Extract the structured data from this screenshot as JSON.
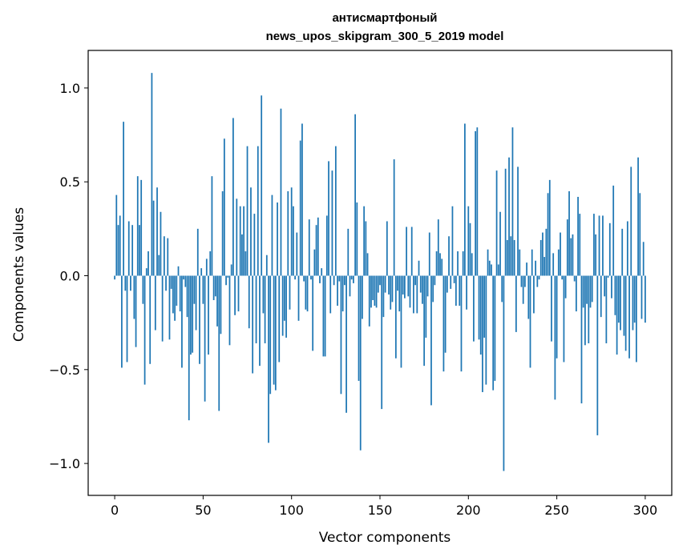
{
  "chart_data": {
    "type": "bar",
    "title_line1": "антисмартфоный",
    "title_line2": "news_upos_skipgram_300_5_2019 model",
    "xlabel": "Vector components",
    "ylabel": "Components values",
    "xlim": [
      -15,
      315
    ],
    "ylim": [
      -1.17,
      1.2
    ],
    "x_ticks": [
      0,
      50,
      100,
      150,
      200,
      250,
      300
    ],
    "x_tick_labels": [
      "0",
      "50",
      "100",
      "150",
      "200",
      "250",
      "300"
    ],
    "y_ticks": [
      -1.0,
      -0.5,
      0.0,
      0.5,
      1.0
    ],
    "y_tick_labels": [
      "−1.0",
      "−0.5",
      "0.0",
      "0.5",
      "1.0"
    ],
    "bar_color": "#1f77b4",
    "bar_width": 0.8,
    "values": [
      -0.02,
      0.43,
      0.27,
      0.32,
      -0.49,
      0.82,
      -0.08,
      -0.46,
      0.29,
      -0.08,
      0.27,
      -0.23,
      -0.38,
      0.53,
      0.27,
      0.51,
      -0.15,
      -0.58,
      0.04,
      0.13,
      -0.47,
      1.08,
      0.4,
      -0.29,
      0.47,
      0.11,
      0.34,
      -0.35,
      0.21,
      -0.08,
      0.2,
      -0.34,
      -0.07,
      -0.2,
      -0.24,
      -0.16,
      0.05,
      -0.19,
      -0.49,
      -0.02,
      -0.06,
      -0.22,
      -0.77,
      -0.42,
      -0.41,
      -0.15,
      -0.29,
      0.25,
      -0.47,
      0.04,
      -0.15,
      -0.67,
      0.09,
      -0.42,
      0.13,
      0.53,
      -0.13,
      -0.11,
      -0.27,
      -0.72,
      -0.31,
      0.45,
      0.73,
      -0.05,
      -0.01,
      -0.37,
      0.06,
      0.84,
      -0.21,
      0.41,
      -0.19,
      0.37,
      0.22,
      0.37,
      0.13,
      0.69,
      -0.28,
      0.47,
      -0.52,
      0.33,
      -0.36,
      0.69,
      -0.48,
      0.96,
      -0.2,
      -0.36,
      0.11,
      -0.89,
      -0.63,
      0.43,
      -0.58,
      -0.61,
      0.39,
      -0.46,
      0.89,
      -0.32,
      -0.24,
      -0.33,
      0.45,
      -0.18,
      0.47,
      0.37,
      -0.02,
      0.23,
      -0.24,
      0.72,
      0.81,
      -0.03,
      -0.18,
      -0.19,
      0.3,
      -0.02,
      -0.4,
      0.14,
      0.27,
      0.31,
      -0.04,
      0.04,
      -0.43,
      -0.43,
      0.32,
      0.61,
      -0.2,
      0.56,
      -0.05,
      0.69,
      -0.16,
      -0.03,
      -0.63,
      -0.19,
      -0.05,
      -0.73,
      0.25,
      -0.11,
      -0.02,
      -0.04,
      0.86,
      0.39,
      -0.56,
      -0.93,
      -0.23,
      0.37,
      0.29,
      0.12,
      -0.27,
      -0.17,
      -0.13,
      -0.16,
      -0.17,
      -0.09,
      -0.05,
      -0.71,
      -0.22,
      -0.09,
      0.29,
      -0.1,
      -0.18,
      -0.14,
      0.62,
      -0.44,
      -0.08,
      -0.19,
      -0.49,
      -0.1,
      -0.12,
      0.26,
      -0.11,
      -0.17,
      0.26,
      -0.2,
      -0.05,
      -0.2,
      0.08,
      -0.09,
      -0.15,
      -0.48,
      -0.33,
      -0.11,
      0.23,
      -0.69,
      -0.14,
      -0.05,
      0.13,
      0.3,
      0.12,
      0.09,
      -0.51,
      -0.41,
      -0.09,
      0.21,
      -0.07,
      0.37,
      -0.04,
      -0.16,
      0.13,
      -0.16,
      -0.51,
      0.13,
      0.81,
      -0.18,
      0.37,
      0.28,
      0.12,
      -0.35,
      0.77,
      0.79,
      -0.34,
      -0.42,
      -0.62,
      -0.33,
      -0.58,
      0.14,
      0.08,
      0.06,
      -0.61,
      -0.56,
      0.56,
      0.06,
      0.34,
      -0.14,
      -1.04,
      0.57,
      0.19,
      0.63,
      0.21,
      0.79,
      0.19,
      -0.3,
      0.58,
      0.14,
      -0.06,
      -0.15,
      -0.06,
      0.07,
      -0.23,
      -0.49,
      0.14,
      -0.2,
      0.08,
      -0.06,
      -0.02,
      0.19,
      0.23,
      0.1,
      0.25,
      0.44,
      0.51,
      -0.35,
      0.12,
      -0.66,
      -0.44,
      0.14,
      0.23,
      -0.02,
      -0.46,
      -0.12,
      0.3,
      0.45,
      0.2,
      0.22,
      -0.03,
      -0.19,
      0.42,
      0.33,
      -0.68,
      -0.17,
      -0.37,
      -0.15,
      -0.36,
      -0.17,
      -0.14,
      0.33,
      0.22,
      -0.85,
      0.32,
      -0.22,
      0.32,
      -0.11,
      -0.36,
      -0.01,
      0.28,
      -0.12,
      0.48,
      -0.21,
      -0.42,
      -0.25,
      -0.29,
      0.25,
      -0.32,
      -0.4,
      0.29,
      -0.44,
      0.58,
      -0.29,
      -0.25,
      -0.46,
      0.63,
      0.44,
      -0.23,
      0.18,
      -0.25
    ]
  }
}
